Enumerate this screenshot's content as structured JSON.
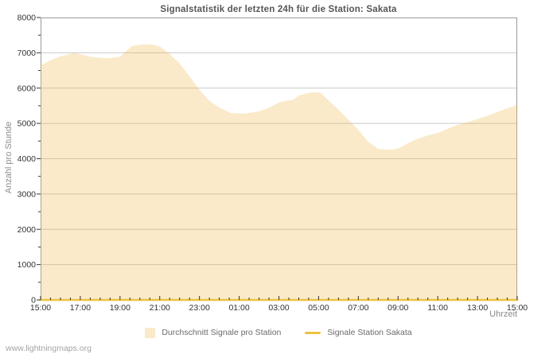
{
  "title": "Signalstatistik der letzten 24h für die Station: Sakata",
  "watermark": "www.lightningmaps.org",
  "colors": {
    "area_fill": "rgba(240,185,80,0.3)",
    "area_fill_solid": "#faeaca",
    "station_line": "#edc240",
    "gridline": "#c9c9c9",
    "plot_border": "#9a9a9a",
    "tick": "#333333",
    "tick_label": "#333333",
    "title_text": "#565656",
    "axis_title": "#8a8a8a",
    "legend_text": "#6b6b6b",
    "watermark_text": "#a4a4a4"
  },
  "legend": {
    "items": [
      {
        "label": "Durchschnitt Signale pro Station",
        "swatch": "area"
      },
      {
        "label": "Signale Station Sakata",
        "swatch": "line"
      }
    ]
  },
  "chart_data": {
    "type": "area",
    "title": "Signalstatistik der letzten 24h für die Station: Sakata",
    "xlabel": "Uhrzeit",
    "ylabel": "Anzahl pro Stunde",
    "ylim": [
      0,
      8000
    ],
    "y_major_step": 1000,
    "y_minor_step": 500,
    "x_hours_span": 24,
    "x_major_step_hours": 2,
    "x_minor_step_hours": 0.5,
    "grid": "horizontal-major-only",
    "legend_position": "bottom-center",
    "y_tick_labels": [
      "0",
      "1000",
      "2000",
      "3000",
      "4000",
      "5000",
      "6000",
      "7000",
      "8000"
    ],
    "x_tick_labels": [
      "15:00",
      "17:00",
      "19:00",
      "21:00",
      "23:00",
      "01:00",
      "03:00",
      "05:00",
      "07:00",
      "09:00",
      "11:00",
      "13:00",
      "15:00"
    ],
    "series": [
      {
        "name": "Durchschnitt Signale pro Station",
        "style": "area",
        "points": [
          [
            0,
            6650
          ],
          [
            0.5,
            6790
          ],
          [
            1,
            6900
          ],
          [
            1.7,
            7000
          ],
          [
            2,
            6960
          ],
          [
            2.5,
            6890
          ],
          [
            3,
            6855
          ],
          [
            3.5,
            6850
          ],
          [
            4,
            6890
          ],
          [
            4.6,
            7190
          ],
          [
            5,
            7230
          ],
          [
            5.6,
            7240
          ],
          [
            6,
            7180
          ],
          [
            6.5,
            6970
          ],
          [
            7,
            6700
          ],
          [
            7.5,
            6330
          ],
          [
            8,
            5950
          ],
          [
            8.5,
            5640
          ],
          [
            9,
            5450
          ],
          [
            9.6,
            5290
          ],
          [
            10.3,
            5280
          ],
          [
            11,
            5340
          ],
          [
            11.5,
            5450
          ],
          [
            12,
            5590
          ],
          [
            12.3,
            5640
          ],
          [
            12.7,
            5660
          ],
          [
            13,
            5790
          ],
          [
            13.6,
            5880
          ],
          [
            14.1,
            5870
          ],
          [
            14.5,
            5650
          ],
          [
            15,
            5390
          ],
          [
            15.5,
            5100
          ],
          [
            16,
            4820
          ],
          [
            16.5,
            4480
          ],
          [
            17,
            4280
          ],
          [
            17.6,
            4250
          ],
          [
            18,
            4290
          ],
          [
            18.5,
            4440
          ],
          [
            19,
            4570
          ],
          [
            19.5,
            4660
          ],
          [
            20,
            4730
          ],
          [
            20.5,
            4850
          ],
          [
            21,
            4960
          ],
          [
            21.5,
            5040
          ],
          [
            22,
            5120
          ],
          [
            22.5,
            5220
          ],
          [
            23,
            5320
          ],
          [
            23.5,
            5430
          ],
          [
            23.85,
            5480
          ],
          [
            24,
            5570
          ]
        ]
      },
      {
        "name": "Signale Station Sakata",
        "style": "line",
        "points": [
          [
            0,
            0
          ],
          [
            24,
            0
          ]
        ]
      }
    ]
  }
}
